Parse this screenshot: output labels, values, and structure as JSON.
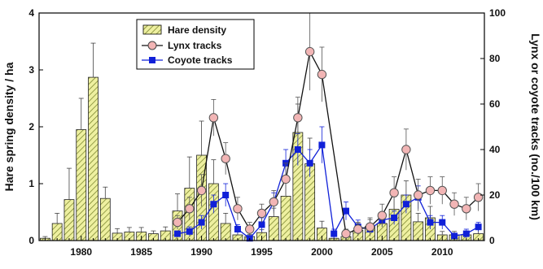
{
  "chart_data": {
    "type": "bar+line",
    "ylabel_left": "Hare spring density / ha",
    "ylabel_right": "Lynx or coyote tracks (no./100 km)",
    "xlabel": "",
    "xlim": [
      1976.5,
      2013.5
    ],
    "ylim_left": [
      0,
      4
    ],
    "ylim_right": [
      0,
      100
    ],
    "x_ticks": [
      1980,
      1985,
      1990,
      1995,
      2000,
      2005,
      2010
    ],
    "y_ticks_left": [
      0,
      1,
      2,
      3,
      4
    ],
    "y_ticks_right": [
      0,
      20,
      40,
      60,
      80,
      100
    ],
    "legend_position": "top-center",
    "grid": false,
    "colors": {
      "hare": "#eef0a0",
      "hare_hatch": "#6f7a22",
      "lynx_marker": "#f2b5b5",
      "lynx_line": "#111111",
      "coyote": "#1020d8"
    },
    "series": [
      {
        "name": "Hare density",
        "axis": "left",
        "style": "bar",
        "x": [
          1977,
          1978,
          1979,
          1980,
          1981,
          1982,
          1983,
          1984,
          1985,
          1986,
          1987,
          1988,
          1989,
          1990,
          1991,
          1992,
          1993,
          1994,
          1995,
          1996,
          1997,
          1998,
          1999,
          2000,
          2001,
          2002,
          2003,
          2004,
          2005,
          2006,
          2007,
          2008,
          2009,
          2010,
          2011,
          2012,
          2013
        ],
        "values": [
          0.04,
          0.3,
          0.72,
          1.95,
          2.87,
          0.74,
          0.13,
          0.15,
          0.15,
          0.12,
          0.17,
          0.52,
          0.92,
          1.5,
          1.0,
          0.3,
          0.1,
          0.07,
          0.14,
          0.42,
          0.78,
          1.9,
          1.35,
          0.22,
          0.04,
          0.07,
          0.18,
          0.25,
          0.3,
          0.55,
          0.8,
          0.33,
          0.4,
          0.1,
          0.1,
          0.1,
          0.12
        ],
        "error": [
          0.03,
          0.18,
          0.55,
          0.55,
          0.6,
          0.2,
          0.08,
          0.08,
          0.08,
          0.05,
          0.07,
          0.3,
          0.55,
          0.6,
          0.42,
          0.18,
          0.06,
          0.04,
          0.05,
          0.15,
          0.3,
          0.5,
          0.45,
          0.12,
          0.03,
          0.05,
          0.12,
          0.12,
          0.12,
          0.22,
          0.25,
          0.15,
          0.2,
          0.06,
          0.06,
          0.06,
          0.08
        ]
      },
      {
        "name": "Lynx tracks",
        "axis": "right",
        "style": "line-circle",
        "x": [
          1988,
          1989,
          1990,
          1991,
          1992,
          1993,
          1994,
          1995,
          1996,
          1997,
          1998,
          1999,
          2000,
          2002,
          2003,
          2004,
          2005,
          2006,
          2007,
          2008,
          2009,
          2010,
          2011,
          2012,
          2013
        ],
        "values": [
          8,
          14,
          22,
          54,
          36,
          14,
          5,
          12,
          17,
          27,
          54,
          83,
          73,
          3,
          5,
          6,
          11,
          21,
          40,
          20,
          22,
          22,
          16,
          14,
          19
        ],
        "error": [
          3,
          5,
          7,
          8,
          7,
          5,
          3,
          4,
          5,
          7,
          9,
          17,
          12,
          2,
          3,
          4,
          5,
          7,
          9,
          7,
          6,
          6,
          5,
          5,
          6
        ]
      },
      {
        "name": "Coyote tracks",
        "axis": "right",
        "style": "line-square",
        "x": [
          1988,
          1989,
          1990,
          1991,
          1992,
          1993,
          1994,
          1995,
          1996,
          1997,
          1998,
          1999,
          2000,
          2001,
          2002,
          2003,
          2004,
          2005,
          2006,
          2007,
          2008,
          2009,
          2010,
          2011,
          2012,
          2013
        ],
        "values": [
          3,
          4,
          8,
          16,
          20,
          5,
          1,
          7,
          17,
          34,
          40,
          34,
          42,
          3,
          13,
          6,
          5,
          9,
          10,
          16,
          19,
          8,
          8,
          2,
          3,
          6
        ],
        "error": [
          1,
          2,
          3,
          4,
          5,
          2,
          1,
          3,
          4,
          6,
          7,
          6,
          8,
          2,
          4,
          3,
          2,
          3,
          3,
          4,
          5,
          3,
          3,
          1,
          2,
          2
        ]
      }
    ]
  }
}
